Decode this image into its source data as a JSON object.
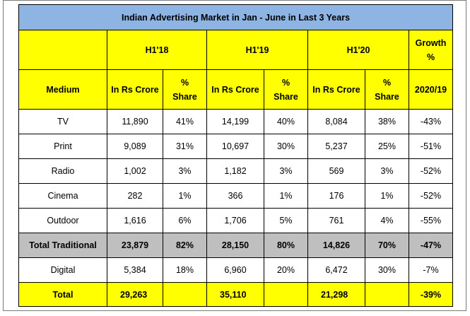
{
  "title": "Indian Advertising Market in Jan - June in Last 3 Years",
  "periods": [
    "H1'18",
    "H1'19",
    "H1'20"
  ],
  "growth_header": [
    "Growth",
    "%"
  ],
  "medium_header": "Medium",
  "sub_headers": {
    "value": "In Rs Crore",
    "share": [
      "%",
      "Share"
    ],
    "growth": "2020/19"
  },
  "rows": [
    {
      "medium": "TV",
      "v18": "11,890",
      "s18": "41%",
      "v19": "14,199",
      "s19": "40%",
      "v20": "8,084",
      "s20": "38%",
      "growth": "-43%"
    },
    {
      "medium": "Print",
      "v18": "9,089",
      "s18": "31%",
      "v19": "10,697",
      "s19": "30%",
      "v20": "5,237",
      "s20": "25%",
      "growth": "-51%"
    },
    {
      "medium": "Radio",
      "v18": "1,002",
      "s18": "3%",
      "v19": "1,182",
      "s19": "3%",
      "v20": "569",
      "s20": "3%",
      "growth": "-52%"
    },
    {
      "medium": "Cinema",
      "v18": "282",
      "s18": "1%",
      "v19": "366",
      "s19": "1%",
      "v20": "176",
      "s20": "1%",
      "growth": "-52%"
    },
    {
      "medium": "Outdoor",
      "v18": "1,616",
      "s18": "6%",
      "v19": "1,706",
      "s19": "5%",
      "v20": "761",
      "s20": "4%",
      "growth": "-55%"
    },
    {
      "medium": "Total Traditional",
      "v18": "23,879",
      "s18": "82%",
      "v19": "28,150",
      "s19": "80%",
      "v20": "14,826",
      "s20": "70%",
      "growth": "-47%"
    },
    {
      "medium": "Digital",
      "v18": "5,384",
      "s18": "18%",
      "v19": "6,960",
      "s19": "20%",
      "v20": "6,472",
      "s20": "30%",
      "growth": "-7%"
    },
    {
      "medium": "Total",
      "v18": "29,263",
      "s18": "",
      "v19": "35,110",
      "s19": "",
      "v20": "21,298",
      "s20": "",
      "growth": "-39%"
    }
  ],
  "colors": {
    "title_bg": "#8db4e2",
    "header_bg": "#ffff00",
    "total_traditional_bg": "#bfbfbf",
    "total_bg": "#ffff00"
  }
}
